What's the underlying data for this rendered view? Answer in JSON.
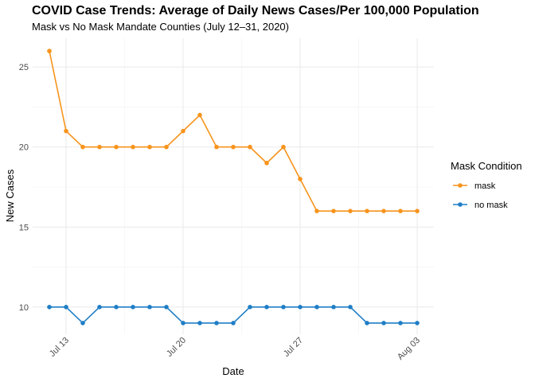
{
  "chart_data": {
    "type": "line",
    "title": "COVID Case Trends: Average of Daily News Cases/Per 100,000 Population",
    "subtitle": "Mask vs No Mask Mandate Counties (July 12–31, 2020)",
    "xlabel": "Date",
    "ylabel": "New Cases",
    "x": [
      "2020-07-12",
      "2020-07-13",
      "2020-07-14",
      "2020-07-15",
      "2020-07-16",
      "2020-07-17",
      "2020-07-18",
      "2020-07-19",
      "2020-07-20",
      "2020-07-21",
      "2020-07-22",
      "2020-07-23",
      "2020-07-24",
      "2020-07-25",
      "2020-07-26",
      "2020-07-27",
      "2020-07-28",
      "2020-07-29",
      "2020-07-30",
      "2020-07-31",
      "2020-08-01",
      "2020-08-02",
      "2020-08-03"
    ],
    "x_ticks": [
      {
        "date": "2020-07-13",
        "label": "Jul 13"
      },
      {
        "date": "2020-07-20",
        "label": "Jul 20"
      },
      {
        "date": "2020-07-27",
        "label": "Jul 27"
      },
      {
        "date": "2020-08-03",
        "label": "Aug 03"
      }
    ],
    "y_ticks": [
      10,
      15,
      20,
      25
    ],
    "ylim": [
      8.3,
      26.8
    ],
    "xlim": [
      "2020-07-11",
      "2020-08-04"
    ],
    "grid": true,
    "legend_title": "Mask Condition",
    "legend_position": "right",
    "series": [
      {
        "name": "mask",
        "color": "#F7941D",
        "values": [
          26,
          21,
          20,
          20,
          20,
          20,
          20,
          20,
          21,
          22,
          20,
          20,
          20,
          19,
          20,
          18,
          16,
          16,
          16,
          16,
          16,
          16,
          16
        ]
      },
      {
        "name": "no mask",
        "color": "#1F7EC6",
        "values": [
          10,
          10,
          9,
          10,
          10,
          10,
          10,
          10,
          9,
          9,
          9,
          9,
          10,
          10,
          10,
          10,
          10,
          10,
          10,
          9,
          9,
          9,
          9
        ]
      }
    ]
  }
}
